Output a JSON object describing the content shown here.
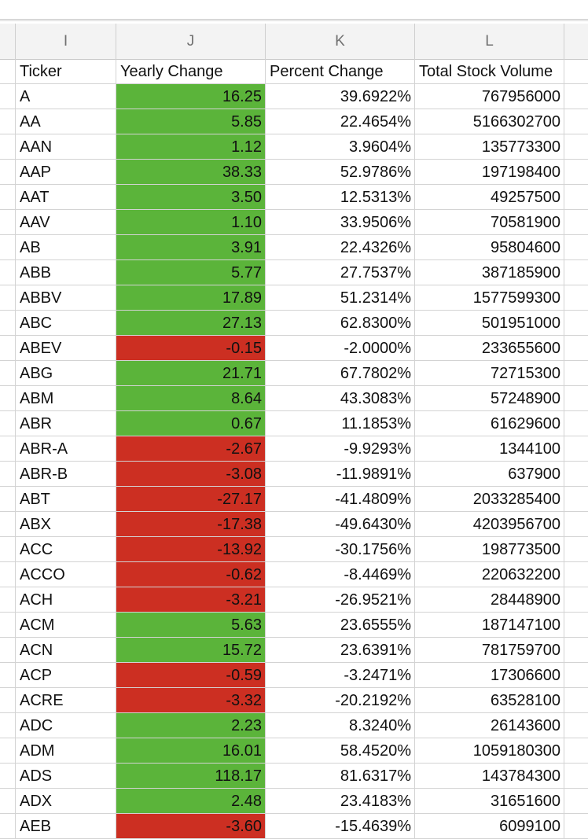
{
  "columns": [
    "I",
    "J",
    "K",
    "L"
  ],
  "headers": [
    "Ticker",
    "Yearly Change",
    "Percent Change",
    "Total Stock Volume"
  ],
  "colors": {
    "positive": "#5bb43a",
    "negative": "#cc2f22"
  },
  "rows": [
    [
      "A",
      "16.25",
      "39.6922%",
      "767956000"
    ],
    [
      "AA",
      "5.85",
      "22.4654%",
      "5166302700"
    ],
    [
      "AAN",
      "1.12",
      "3.9604%",
      "135773300"
    ],
    [
      "AAP",
      "38.33",
      "52.9786%",
      "197198400"
    ],
    [
      "AAT",
      "3.50",
      "12.5313%",
      "49257500"
    ],
    [
      "AAV",
      "1.10",
      "33.9506%",
      "70581900"
    ],
    [
      "AB",
      "3.91",
      "22.4326%",
      "95804600"
    ],
    [
      "ABB",
      "5.77",
      "27.7537%",
      "387185900"
    ],
    [
      "ABBV",
      "17.89",
      "51.2314%",
      "1577599300"
    ],
    [
      "ABC",
      "27.13",
      "62.8300%",
      "501951000"
    ],
    [
      "ABEV",
      "-0.15",
      "-2.0000%",
      "233655600"
    ],
    [
      "ABG",
      "21.71",
      "67.7802%",
      "72715300"
    ],
    [
      "ABM",
      "8.64",
      "43.3083%",
      "57248900"
    ],
    [
      "ABR",
      "0.67",
      "11.1853%",
      "61629600"
    ],
    [
      "ABR-A",
      "-2.67",
      "-9.9293%",
      "1344100"
    ],
    [
      "ABR-B",
      "-3.08",
      "-11.9891%",
      "637900"
    ],
    [
      "ABT",
      "-27.17",
      "-41.4809%",
      "2033285400"
    ],
    [
      "ABX",
      "-17.38",
      "-49.6430%",
      "4203956700"
    ],
    [
      "ACC",
      "-13.92",
      "-30.1756%",
      "198773500"
    ],
    [
      "ACCO",
      "-0.62",
      "-8.4469%",
      "220632200"
    ],
    [
      "ACH",
      "-3.21",
      "-26.9521%",
      "28448900"
    ],
    [
      "ACM",
      "5.63",
      "23.6555%",
      "187147100"
    ],
    [
      "ACN",
      "15.72",
      "23.6391%",
      "781759700"
    ],
    [
      "ACP",
      "-0.59",
      "-3.2471%",
      "17306600"
    ],
    [
      "ACRE",
      "-3.32",
      "-20.2192%",
      "63528100"
    ],
    [
      "ADC",
      "2.23",
      "8.3240%",
      "26143600"
    ],
    [
      "ADM",
      "16.01",
      "58.4520%",
      "1059180300"
    ],
    [
      "ADS",
      "118.17",
      "81.6317%",
      "143784300"
    ],
    [
      "ADX",
      "2.48",
      "23.4183%",
      "31651600"
    ],
    [
      "AEB",
      "-3.60",
      "-15.4639%",
      "6099100"
    ]
  ]
}
